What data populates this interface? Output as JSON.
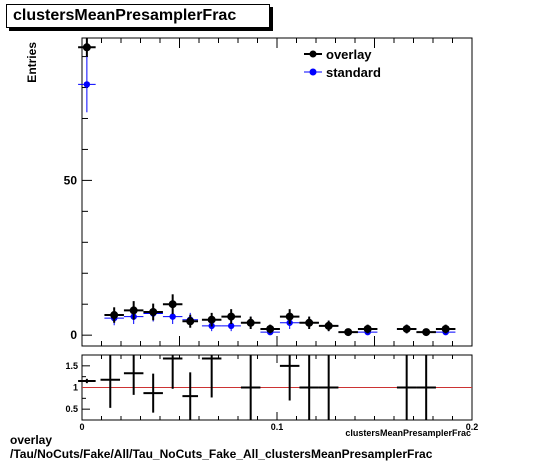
{
  "title": "clustersMeanPresamplerFrac",
  "footer": {
    "line1": "overlay",
    "line2": "/Tau/NoCuts/Fake/All/Tau_NoCuts_Fake_All_clustersMeanPresamplerFrac"
  },
  "colors": {
    "overlay": "#000000",
    "standard": "#0000ff",
    "ratio_ref": "#cc3333"
  },
  "chart_data": [
    {
      "type": "scatter",
      "title": "clustersMeanPresamplerFrac",
      "ylabel": "Entries",
      "xlabel": "clustersMeanPresamplerFrac",
      "xlim": [
        0,
        0.2
      ],
      "ylim": [
        -3.5,
        96
      ],
      "yticks": [
        0,
        50
      ],
      "legend": {
        "position": "top-right",
        "entries": [
          "overlay",
          "standard"
        ]
      },
      "series": [
        {
          "name": "overlay",
          "x": [
            0.0025,
            0.0165,
            0.0265,
            0.0365,
            0.0465,
            0.0555,
            0.0665,
            0.0765,
            0.0865,
            0.0965,
            0.1065,
            0.1165,
            0.1265,
            0.1365,
            0.1465,
            0.1665,
            0.1765,
            0.1865
          ],
          "xerr": [
            0.0045,
            0.005,
            0.005,
            0.005,
            0.005,
            0.004,
            0.005,
            0.005,
            0.005,
            0.005,
            0.005,
            0.005,
            0.005,
            0.005,
            0.005,
            0.005,
            0.005,
            0.005
          ],
          "y": [
            93,
            6.5,
            8,
            7.5,
            10,
            4.5,
            5,
            6,
            4,
            2,
            6,
            4,
            3,
            1,
            2,
            2,
            1,
            2
          ],
          "yerr": [
            3,
            2.5,
            3,
            2.7,
            3.2,
            2.1,
            2.2,
            2.4,
            2,
            1.4,
            2.4,
            2,
            1.7,
            1,
            1.4,
            1.4,
            1,
            1.4
          ]
        },
        {
          "name": "standard",
          "x": [
            0.0025,
            0.0165,
            0.0265,
            0.0365,
            0.0465,
            0.0555,
            0.0665,
            0.0765,
            0.0865,
            0.0965,
            0.1065,
            0.1165,
            0.1265,
            0.1365,
            0.1465,
            0.1665,
            0.1765,
            0.1865
          ],
          "xerr": [
            0.0045,
            0.005,
            0.005,
            0.005,
            0.005,
            0.004,
            0.005,
            0.005,
            0.005,
            0.005,
            0.005,
            0.005,
            0.005,
            0.005,
            0.005,
            0.005,
            0.005,
            0.005
          ],
          "y": [
            81,
            5.5,
            6,
            7,
            6,
            5,
            3,
            3,
            4,
            1,
            4,
            4,
            3,
            1,
            1,
            2,
            1,
            1
          ],
          "yerr": [
            9,
            2.3,
            2.4,
            2.6,
            2.4,
            2.2,
            1.7,
            1.7,
            2,
            1,
            2,
            2,
            1.7,
            1,
            1,
            1.4,
            1,
            1
          ]
        }
      ]
    },
    {
      "type": "scatter",
      "xlabel": "clustersMeanPresamplerFrac",
      "xlim": [
        0,
        0.2
      ],
      "ylim": [
        0.25,
        1.75
      ],
      "xticks": [
        0,
        0.1,
        0.2
      ],
      "yticks": [
        0.5,
        1,
        1.5
      ],
      "reference_line": 1,
      "series": [
        {
          "name": "ratio",
          "x": [
            0.0025,
            0.0145,
            0.0265,
            0.0365,
            0.0465,
            0.0555,
            0.0665,
            0.0865,
            0.1065,
            0.1165,
            0.1265,
            0.1665,
            0.1765
          ],
          "xerr": [
            0.0045,
            0.005,
            0.005,
            0.005,
            0.005,
            0.004,
            0.005,
            0.005,
            0.005,
            0.005,
            0.005,
            0.005,
            0.005
          ],
          "y": [
            1.15,
            1.18,
            1.33,
            0.87,
            1.67,
            0.8,
            1.67,
            1.0,
            1.5,
            1.0,
            1.0,
            1.0,
            1.0
          ],
          "yerr": [
            0.05,
            0.65,
            0.5,
            0.45,
            0.7,
            0.55,
            0.9,
            0.8,
            0.8,
            0.75,
            0.8,
            0.8,
            0.8
          ]
        }
      ]
    }
  ]
}
